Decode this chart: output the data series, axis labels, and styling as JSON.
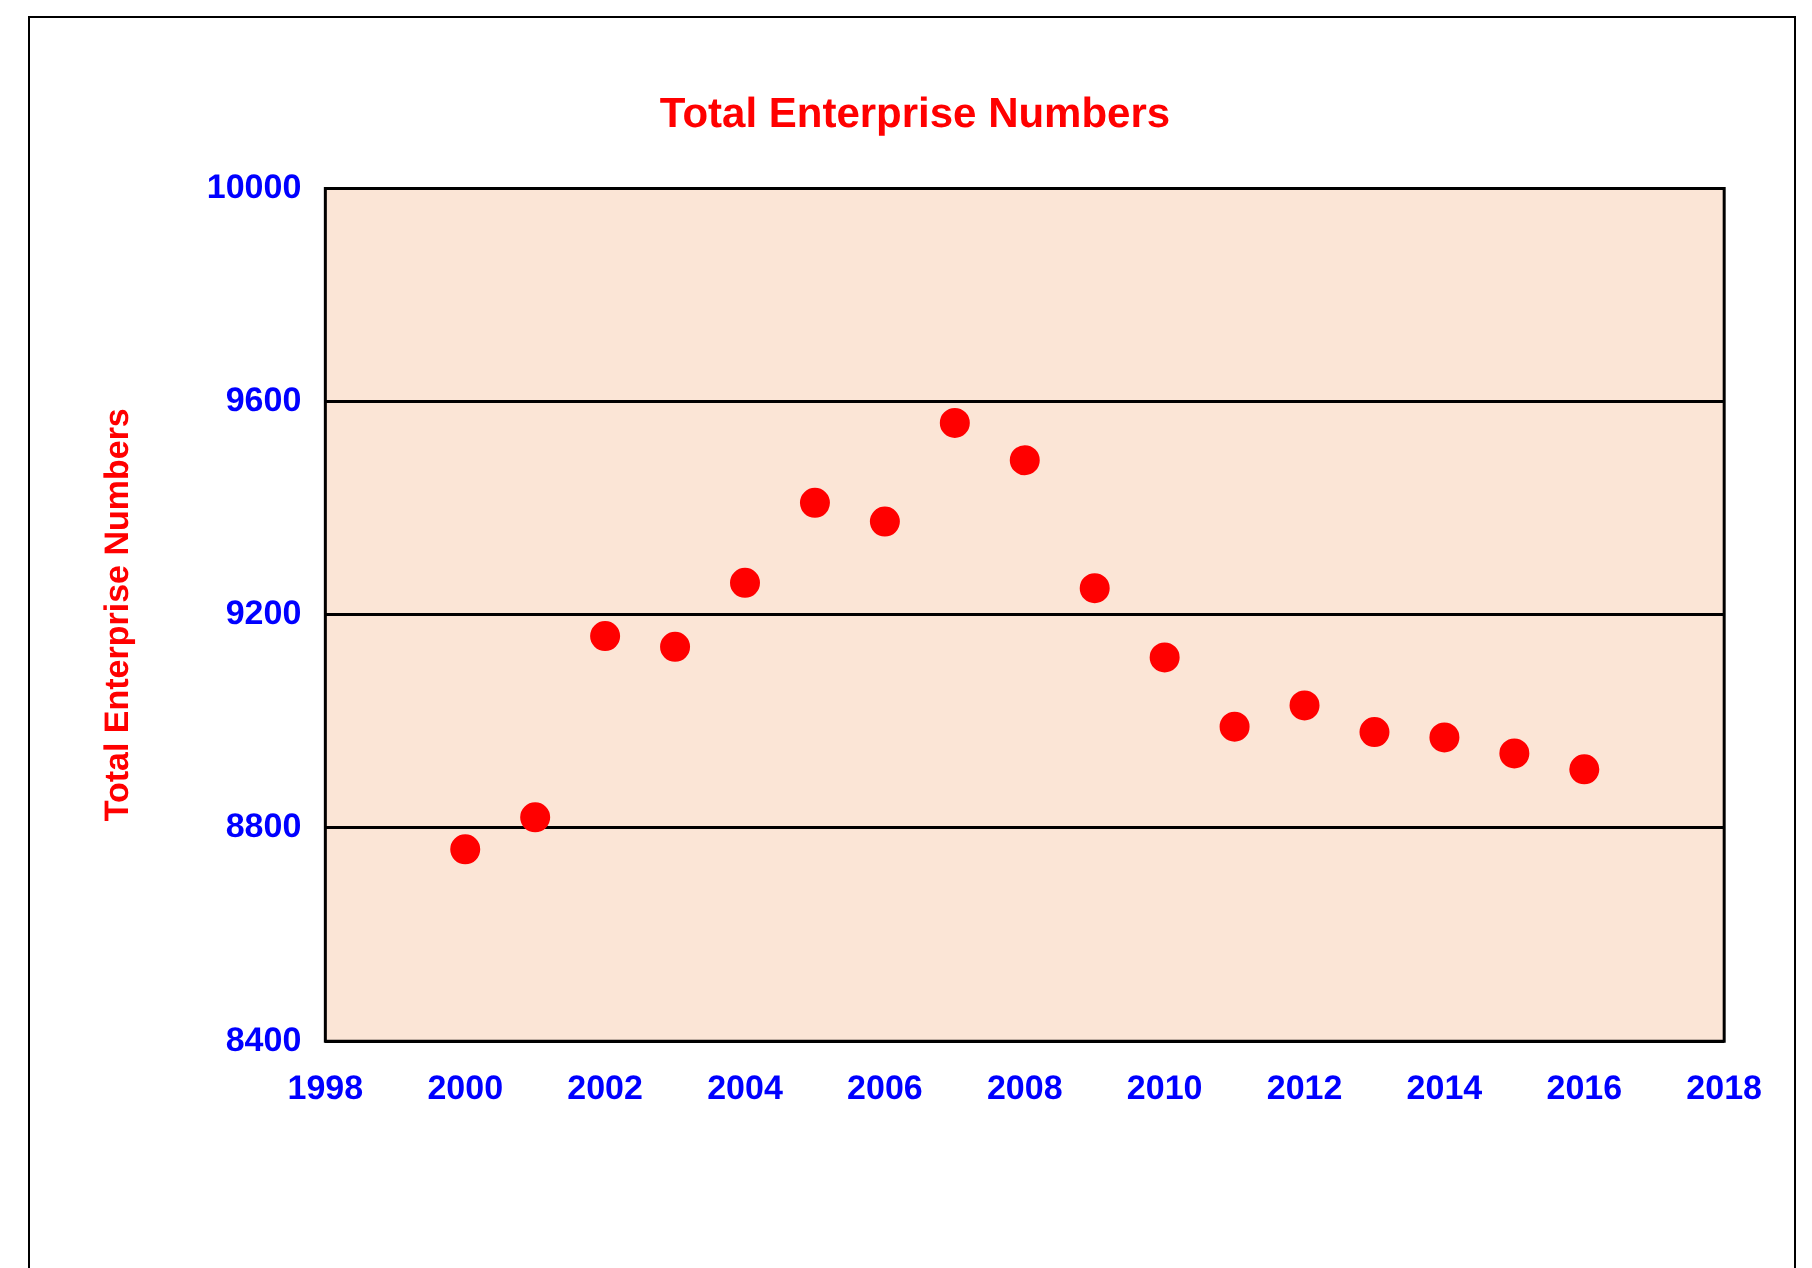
{
  "chart_data": {
    "type": "scatter",
    "title": "Total Enterprise Numbers",
    "ylabel": "Total Enterprise Numbers",
    "x": [
      2000,
      2001,
      2002,
      2003,
      2004,
      2005,
      2006,
      2007,
      2008,
      2009,
      2010,
      2011,
      2012,
      2013,
      2014,
      2015,
      2016
    ],
    "series": [
      {
        "color": "#ff0000",
        "values": [
          8760,
          8820,
          9160,
          9140,
          9260,
          9410,
          9375,
          9560,
          9490,
          9250,
          9120,
          8990,
          9030,
          8980,
          8970,
          8940,
          8910
        ]
      }
    ],
    "xlim": [
      1998,
      2018
    ],
    "xticks": [
      1998,
      2000,
      2002,
      2004,
      2006,
      2008,
      2010,
      2012,
      2014,
      2016,
      2018
    ],
    "ylim": [
      8400,
      10000
    ],
    "yticks": [
      8400,
      8800,
      9200,
      9600,
      10000
    ],
    "grid": "y",
    "legend": false,
    "marker": "circle"
  }
}
